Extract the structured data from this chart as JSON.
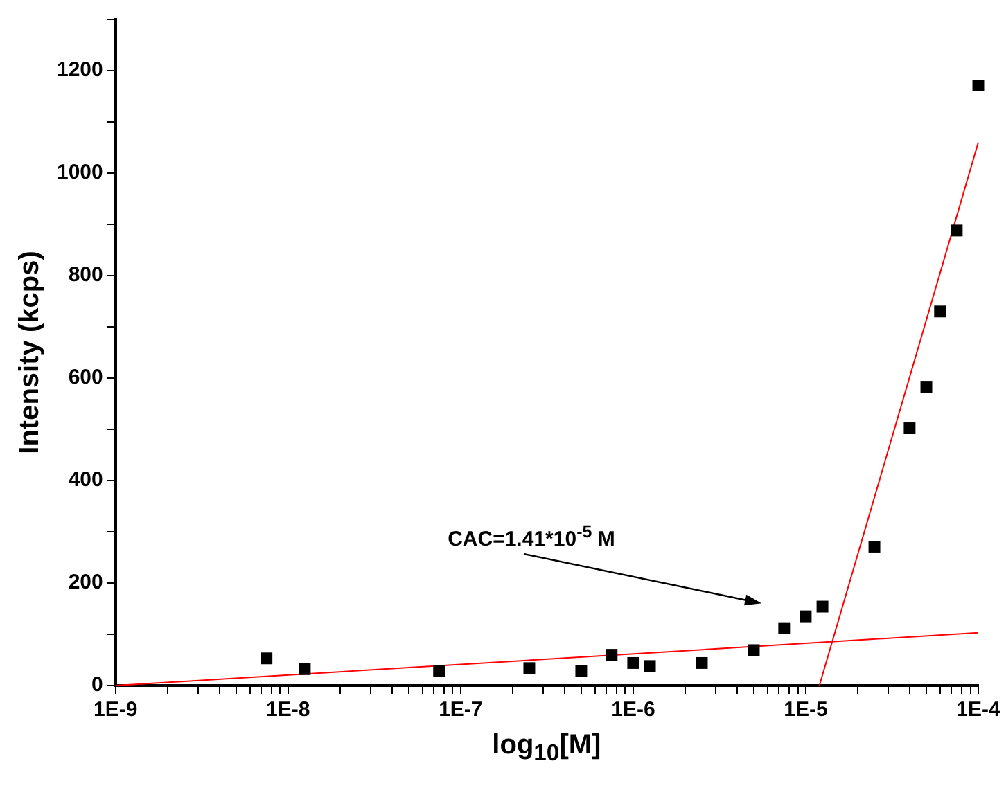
{
  "chart_data": {
    "type": "scatter",
    "xlabel": "log$_{10}$[M]",
    "ylabel": "Intensity (kcps)",
    "log": "x",
    "xlim": [
      1e-09,
      0.0001
    ],
    "ylim": [
      0,
      1300
    ],
    "xticks": [
      {
        "value": 1e-09,
        "label": "1E-9"
      },
      {
        "value": 2e-09,
        "label": null
      },
      {
        "value": 3e-09,
        "label": null
      },
      {
        "value": 4e-09,
        "label": null
      },
      {
        "value": 5e-09,
        "label": null
      },
      {
        "value": 6e-09,
        "label": null
      },
      {
        "value": 7e-09,
        "label": null
      },
      {
        "value": 8e-09,
        "label": null
      },
      {
        "value": 9e-09,
        "label": null
      },
      {
        "value": 1e-08,
        "label": "1E-8"
      },
      {
        "value": 2e-08,
        "label": null
      },
      {
        "value": 3e-08,
        "label": null
      },
      {
        "value": 4e-08,
        "label": null
      },
      {
        "value": 5e-08,
        "label": null
      },
      {
        "value": 6e-08,
        "label": null
      },
      {
        "value": 7e-08,
        "label": null
      },
      {
        "value": 8e-08,
        "label": null
      },
      {
        "value": 9e-08,
        "label": null
      },
      {
        "value": 1e-07,
        "label": "1E-7"
      },
      {
        "value": 2e-07,
        "label": null
      },
      {
        "value": 3e-07,
        "label": null
      },
      {
        "value": 4e-07,
        "label": null
      },
      {
        "value": 5e-07,
        "label": null
      },
      {
        "value": 6e-07,
        "label": null
      },
      {
        "value": 7e-07,
        "label": null
      },
      {
        "value": 8e-07,
        "label": null
      },
      {
        "value": 9e-07,
        "label": null
      },
      {
        "value": 1e-06,
        "label": "1E-6"
      },
      {
        "value": 2e-06,
        "label": null
      },
      {
        "value": 3e-06,
        "label": null
      },
      {
        "value": 4e-06,
        "label": null
      },
      {
        "value": 5e-06,
        "label": null
      },
      {
        "value": 6e-06,
        "label": null
      },
      {
        "value": 7e-06,
        "label": null
      },
      {
        "value": 8e-06,
        "label": null
      },
      {
        "value": 9e-06,
        "label": null
      },
      {
        "value": 1e-05,
        "label": "1E-5"
      },
      {
        "value": 2e-05,
        "label": null
      },
      {
        "value": 3e-05,
        "label": null
      },
      {
        "value": 4e-05,
        "label": null
      },
      {
        "value": 5e-05,
        "label": null
      },
      {
        "value": 6e-05,
        "label": null
      },
      {
        "value": 7e-05,
        "label": null
      },
      {
        "value": 8e-05,
        "label": null
      },
      {
        "value": 9e-05,
        "label": null
      },
      {
        "value": 0.0001,
        "label": "1E-4"
      }
    ],
    "yticks": [
      0,
      {
        "value": 100,
        "label": null
      },
      200,
      {
        "value": 300,
        "label": null
      },
      400,
      {
        "value": 500,
        "label": null
      },
      600,
      {
        "value": 700,
        "label": null
      },
      800,
      {
        "value": 900,
        "label": null
      },
      1000,
      {
        "value": 1100,
        "label": null
      },
      1200,
      {
        "value": 1300,
        "label": null
      }
    ],
    "grid": false,
    "legend": false,
    "line_style": "solid",
    "annotations": [
      "CAC=1.41*10$^{-5}$ M"
    ],
    "series": [
      {
        "marker": "square",
        "color": "#000000",
        "x": [
          7.5e-09,
          1.25e-08,
          7.5e-08,
          2.5e-07,
          5e-07,
          7.5e-07,
          1e-06,
          1.25e-06,
          2.5e-06,
          5e-06,
          7.5e-06,
          1e-05,
          1.25e-05,
          2.5e-05,
          4e-05,
          5e-05,
          6e-05,
          7.5e-05,
          0.0001
        ],
        "values": [
          53,
          32,
          29,
          34,
          28,
          60,
          44,
          38,
          44,
          69,
          112,
          135,
          154,
          271,
          502,
          583,
          730,
          888,
          1171
        ]
      },
      {
        "type": "line",
        "marker": "none",
        "color": "#ff0000",
        "x": [
          1e-09,
          0.0001
        ],
        "values": [
          0,
          103
        ]
      },
      {
        "type": "line",
        "marker": "none",
        "color": "#ff0000",
        "x": [
          1.2e-05,
          0.0001
        ],
        "values": [
          0,
          1060
        ]
      }
    ]
  }
}
